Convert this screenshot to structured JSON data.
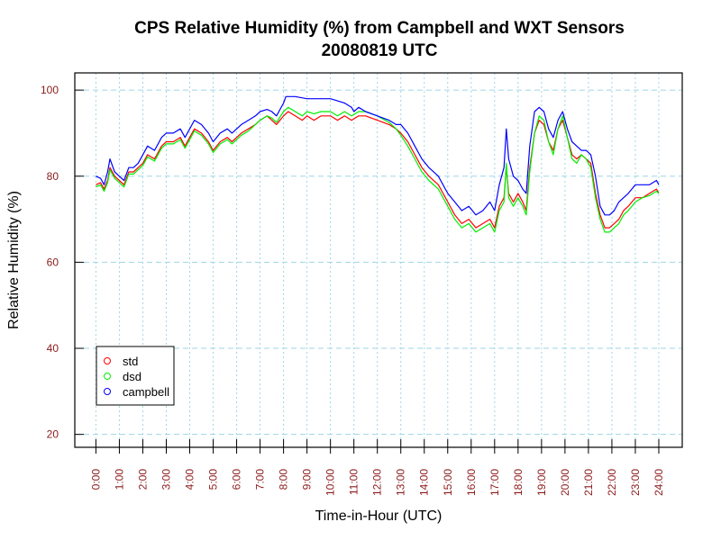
{
  "chart_data": {
    "type": "line",
    "title": "CPS Relative Humidity (%) from Campbell and WXT Sensors",
    "subtitle": "20080819  UTC",
    "xlabel": "Time-in-Hour (UTC)",
    "ylabel": "Relative Humidity (%)",
    "xlim": [
      -0.9,
      25.0
    ],
    "ylim": [
      17,
      104
    ],
    "grid": true,
    "legend_position": "bottom-left",
    "x_ticks": [
      {
        "value": 0,
        "label": "0:00"
      },
      {
        "value": 1,
        "label": "1:00"
      },
      {
        "value": 2,
        "label": "2:00"
      },
      {
        "value": 3,
        "label": "3:00"
      },
      {
        "value": 4,
        "label": "4:00"
      },
      {
        "value": 5,
        "label": "5:00"
      },
      {
        "value": 6,
        "label": "6:00"
      },
      {
        "value": 7,
        "label": "7:00"
      },
      {
        "value": 8,
        "label": "8:00"
      },
      {
        "value": 9,
        "label": "9:00"
      },
      {
        "value": 10,
        "label": "10:00"
      },
      {
        "value": 11,
        "label": "11:00"
      },
      {
        "value": 12,
        "label": "12:00"
      },
      {
        "value": 13,
        "label": "13:00"
      },
      {
        "value": 14,
        "label": "14:00"
      },
      {
        "value": 15,
        "label": "15:00"
      },
      {
        "value": 16,
        "label": "16:00"
      },
      {
        "value": 17,
        "label": "17:00"
      },
      {
        "value": 18,
        "label": "18:00"
      },
      {
        "value": 19,
        "label": "19:00"
      },
      {
        "value": 20,
        "label": "20:00"
      },
      {
        "value": 21,
        "label": "21:00"
      },
      {
        "value": 22,
        "label": "22:00"
      },
      {
        "value": 23,
        "label": "23:00"
      },
      {
        "value": 24,
        "label": "24:00"
      }
    ],
    "y_ticks": [
      {
        "value": 20,
        "label": "20"
      },
      {
        "value": 40,
        "label": "40"
      },
      {
        "value": 60,
        "label": "60"
      },
      {
        "value": 80,
        "label": "80"
      },
      {
        "value": 100,
        "label": "100"
      }
    ],
    "series": [
      {
        "name": "std",
        "color": "#ff0000",
        "points": [
          [
            0.0,
            78
          ],
          [
            0.2,
            78.5
          ],
          [
            0.35,
            77
          ],
          [
            0.5,
            79
          ],
          [
            0.6,
            82
          ],
          [
            0.8,
            80
          ],
          [
            1.0,
            79
          ],
          [
            1.2,
            78
          ],
          [
            1.4,
            81
          ],
          [
            1.6,
            81
          ],
          [
            1.8,
            82
          ],
          [
            2.0,
            83
          ],
          [
            2.2,
            85
          ],
          [
            2.5,
            84
          ],
          [
            2.8,
            87
          ],
          [
            3.0,
            88
          ],
          [
            3.3,
            88
          ],
          [
            3.6,
            89
          ],
          [
            3.8,
            87
          ],
          [
            4.0,
            89
          ],
          [
            4.2,
            91
          ],
          [
            4.5,
            90
          ],
          [
            4.8,
            88
          ],
          [
            5.0,
            86
          ],
          [
            5.3,
            88
          ],
          [
            5.6,
            89
          ],
          [
            5.8,
            88
          ],
          [
            6.0,
            89
          ],
          [
            6.2,
            90
          ],
          [
            6.5,
            91
          ],
          [
            6.8,
            92
          ],
          [
            7.0,
            93
          ],
          [
            7.3,
            94
          ],
          [
            7.5,
            93
          ],
          [
            7.7,
            92
          ],
          [
            8.0,
            94
          ],
          [
            8.2,
            95
          ],
          [
            8.5,
            94
          ],
          [
            8.8,
            93
          ],
          [
            9.0,
            94
          ],
          [
            9.3,
            93
          ],
          [
            9.6,
            94
          ],
          [
            10.0,
            94
          ],
          [
            10.3,
            93
          ],
          [
            10.6,
            94
          ],
          [
            10.9,
            93
          ],
          [
            11.2,
            94
          ],
          [
            11.5,
            94
          ],
          [
            12.0,
            93
          ],
          [
            12.5,
            92
          ],
          [
            12.8,
            91
          ],
          [
            13.0,
            90
          ],
          [
            13.3,
            88
          ],
          [
            13.6,
            85
          ],
          [
            13.9,
            82
          ],
          [
            14.2,
            80
          ],
          [
            14.6,
            78
          ],
          [
            15.0,
            74
          ],
          [
            15.3,
            71
          ],
          [
            15.6,
            69
          ],
          [
            15.9,
            70
          ],
          [
            16.2,
            68
          ],
          [
            16.5,
            69
          ],
          [
            16.8,
            70
          ],
          [
            17.0,
            68
          ],
          [
            17.2,
            73
          ],
          [
            17.4,
            75
          ],
          [
            17.5,
            82
          ],
          [
            17.6,
            76
          ],
          [
            17.8,
            74
          ],
          [
            18.0,
            76
          ],
          [
            18.2,
            74
          ],
          [
            18.35,
            72
          ],
          [
            18.5,
            82
          ],
          [
            18.7,
            90
          ],
          [
            18.9,
            93
          ],
          [
            19.1,
            92
          ],
          [
            19.3,
            88
          ],
          [
            19.5,
            86
          ],
          [
            19.7,
            91
          ],
          [
            19.9,
            93
          ],
          [
            20.1,
            89
          ],
          [
            20.3,
            85
          ],
          [
            20.5,
            84
          ],
          [
            20.7,
            85
          ],
          [
            20.9,
            84
          ],
          [
            21.1,
            83
          ],
          [
            21.3,
            76
          ],
          [
            21.5,
            71
          ],
          [
            21.7,
            68
          ],
          [
            21.9,
            68
          ],
          [
            22.1,
            69
          ],
          [
            22.3,
            70
          ],
          [
            22.5,
            72
          ],
          [
            22.7,
            73
          ],
          [
            23.0,
            75
          ],
          [
            23.3,
            75
          ],
          [
            23.6,
            76
          ],
          [
            23.9,
            77
          ],
          [
            24.0,
            76
          ]
        ]
      },
      {
        "name": "dsd",
        "color": "#00ee00",
        "points": [
          [
            0.0,
            77.5
          ],
          [
            0.2,
            78
          ],
          [
            0.35,
            76.5
          ],
          [
            0.5,
            78.5
          ],
          [
            0.6,
            81.5
          ],
          [
            0.8,
            79.5
          ],
          [
            1.0,
            78.5
          ],
          [
            1.2,
            77.5
          ],
          [
            1.4,
            80.5
          ],
          [
            1.6,
            80.5
          ],
          [
            1.8,
            81.5
          ],
          [
            2.0,
            82.5
          ],
          [
            2.2,
            84.5
          ],
          [
            2.5,
            83.5
          ],
          [
            2.8,
            86.5
          ],
          [
            3.0,
            87.5
          ],
          [
            3.3,
            87.5
          ],
          [
            3.6,
            88.5
          ],
          [
            3.8,
            86.5
          ],
          [
            4.0,
            88.5
          ],
          [
            4.2,
            90.5
          ],
          [
            4.5,
            89.5
          ],
          [
            4.8,
            87.5
          ],
          [
            5.0,
            85.5
          ],
          [
            5.3,
            87.5
          ],
          [
            5.6,
            88.5
          ],
          [
            5.8,
            87.5
          ],
          [
            6.0,
            88.5
          ],
          [
            6.2,
            89.5
          ],
          [
            6.5,
            90.5
          ],
          [
            6.8,
            92
          ],
          [
            7.0,
            93
          ],
          [
            7.3,
            94
          ],
          [
            7.5,
            93.5
          ],
          [
            7.7,
            92.5
          ],
          [
            8.0,
            95
          ],
          [
            8.2,
            96
          ],
          [
            8.5,
            95
          ],
          [
            8.8,
            94
          ],
          [
            9.0,
            95
          ],
          [
            9.3,
            94.5
          ],
          [
            9.6,
            95
          ],
          [
            10.0,
            95
          ],
          [
            10.3,
            94
          ],
          [
            10.6,
            95
          ],
          [
            10.9,
            94
          ],
          [
            11.2,
            95
          ],
          [
            11.5,
            95
          ],
          [
            12.0,
            94
          ],
          [
            12.5,
            92.5
          ],
          [
            12.8,
            91
          ],
          [
            13.0,
            89.5
          ],
          [
            13.3,
            87
          ],
          [
            13.6,
            84
          ],
          [
            13.9,
            81
          ],
          [
            14.2,
            79
          ],
          [
            14.6,
            77
          ],
          [
            15.0,
            73
          ],
          [
            15.3,
            70
          ],
          [
            15.6,
            68
          ],
          [
            15.9,
            69
          ],
          [
            16.2,
            67
          ],
          [
            16.5,
            68
          ],
          [
            16.8,
            69
          ],
          [
            17.0,
            67
          ],
          [
            17.2,
            72
          ],
          [
            17.4,
            74
          ],
          [
            17.5,
            83
          ],
          [
            17.6,
            75
          ],
          [
            17.8,
            73
          ],
          [
            18.0,
            75
          ],
          [
            18.2,
            73
          ],
          [
            18.35,
            71
          ],
          [
            18.5,
            81
          ],
          [
            18.7,
            90
          ],
          [
            18.9,
            94
          ],
          [
            19.1,
            93
          ],
          [
            19.3,
            88
          ],
          [
            19.5,
            85
          ],
          [
            19.7,
            91
          ],
          [
            19.9,
            94
          ],
          [
            20.1,
            89
          ],
          [
            20.3,
            84
          ],
          [
            20.5,
            83
          ],
          [
            20.7,
            85
          ],
          [
            20.9,
            84
          ],
          [
            21.1,
            82
          ],
          [
            21.3,
            75
          ],
          [
            21.5,
            70
          ],
          [
            21.7,
            67
          ],
          [
            21.9,
            67
          ],
          [
            22.1,
            68
          ],
          [
            22.3,
            69
          ],
          [
            22.5,
            71
          ],
          [
            22.7,
            72
          ],
          [
            23.0,
            74
          ],
          [
            23.3,
            75
          ],
          [
            23.6,
            75.5
          ],
          [
            23.9,
            76.5
          ],
          [
            24.0,
            76
          ]
        ]
      },
      {
        "name": "campbell",
        "color": "#0000ff",
        "points": [
          [
            0.0,
            80
          ],
          [
            0.2,
            79.5
          ],
          [
            0.35,
            78
          ],
          [
            0.5,
            81
          ],
          [
            0.6,
            84
          ],
          [
            0.8,
            81
          ],
          [
            1.0,
            80
          ],
          [
            1.2,
            79
          ],
          [
            1.4,
            82
          ],
          [
            1.6,
            82
          ],
          [
            1.8,
            83
          ],
          [
            2.0,
            85
          ],
          [
            2.2,
            87
          ],
          [
            2.5,
            86
          ],
          [
            2.8,
            89
          ],
          [
            3.0,
            90
          ],
          [
            3.3,
            90
          ],
          [
            3.6,
            91
          ],
          [
            3.8,
            89
          ],
          [
            4.0,
            91
          ],
          [
            4.2,
            93
          ],
          [
            4.5,
            92
          ],
          [
            4.8,
            90
          ],
          [
            5.0,
            88
          ],
          [
            5.3,
            90
          ],
          [
            5.6,
            91
          ],
          [
            5.8,
            90
          ],
          [
            6.0,
            91
          ],
          [
            6.2,
            92
          ],
          [
            6.5,
            93
          ],
          [
            6.8,
            94
          ],
          [
            7.0,
            95
          ],
          [
            7.3,
            95.5
          ],
          [
            7.5,
            95
          ],
          [
            7.7,
            94
          ],
          [
            8.0,
            97
          ],
          [
            8.1,
            98.5
          ],
          [
            8.5,
            98.5
          ],
          [
            9.0,
            98
          ],
          [
            9.5,
            98
          ],
          [
            10.0,
            98
          ],
          [
            10.3,
            97.5
          ],
          [
            10.6,
            97
          ],
          [
            10.9,
            96
          ],
          [
            11.0,
            95
          ],
          [
            11.2,
            96
          ],
          [
            11.5,
            95
          ],
          [
            12.0,
            94
          ],
          [
            12.5,
            93
          ],
          [
            12.8,
            92
          ],
          [
            13.0,
            92
          ],
          [
            13.3,
            90
          ],
          [
            13.6,
            87
          ],
          [
            13.9,
            84
          ],
          [
            14.2,
            82
          ],
          [
            14.6,
            80
          ],
          [
            15.0,
            76
          ],
          [
            15.3,
            74
          ],
          [
            15.6,
            72
          ],
          [
            15.9,
            73
          ],
          [
            16.2,
            71
          ],
          [
            16.5,
            72
          ],
          [
            16.8,
            74
          ],
          [
            17.0,
            72
          ],
          [
            17.2,
            78
          ],
          [
            17.4,
            82
          ],
          [
            17.5,
            91
          ],
          [
            17.6,
            84
          ],
          [
            17.8,
            80
          ],
          [
            18.0,
            79
          ],
          [
            18.2,
            77
          ],
          [
            18.35,
            76
          ],
          [
            18.5,
            87
          ],
          [
            18.7,
            95
          ],
          [
            18.9,
            96
          ],
          [
            19.1,
            95
          ],
          [
            19.3,
            91
          ],
          [
            19.5,
            89
          ],
          [
            19.7,
            93
          ],
          [
            19.9,
            95
          ],
          [
            20.1,
            91
          ],
          [
            20.3,
            88
          ],
          [
            20.5,
            87
          ],
          [
            20.7,
            86
          ],
          [
            20.9,
            86
          ],
          [
            21.1,
            85
          ],
          [
            21.3,
            80
          ],
          [
            21.5,
            73
          ],
          [
            21.7,
            71
          ],
          [
            21.9,
            71
          ],
          [
            22.1,
            72
          ],
          [
            22.3,
            74
          ],
          [
            22.5,
            75
          ],
          [
            22.7,
            76
          ],
          [
            23.0,
            78
          ],
          [
            23.3,
            78
          ],
          [
            23.6,
            78
          ],
          [
            23.9,
            79
          ],
          [
            24.0,
            78
          ]
        ]
      }
    ]
  }
}
